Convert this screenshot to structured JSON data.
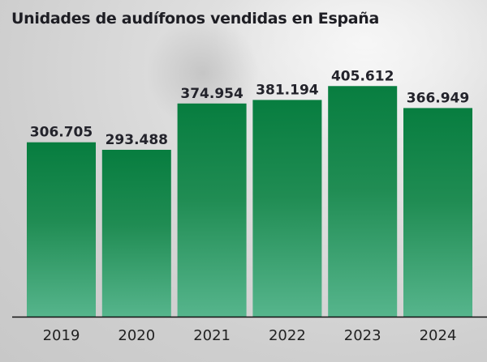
{
  "chart_data": {
    "type": "bar",
    "title": "Unidades de audífonos vendidas en España",
    "xlabel": "",
    "ylabel": "",
    "categories": [
      "2019",
      "2020",
      "2021",
      "2022",
      "2023",
      "2024"
    ],
    "values": [
      306705,
      293488,
      374954,
      381194,
      405612,
      366949
    ],
    "data_labels": [
      "306.705",
      "293.488",
      "374.954",
      "381.194",
      "405.612",
      "366.949"
    ],
    "ylim": [
      0,
      557000
    ],
    "grid": false,
    "legend": "none",
    "colors": {
      "bar_top": "#007a3a",
      "bar_bottom": "#52b48a",
      "baseline": "#111111"
    }
  }
}
